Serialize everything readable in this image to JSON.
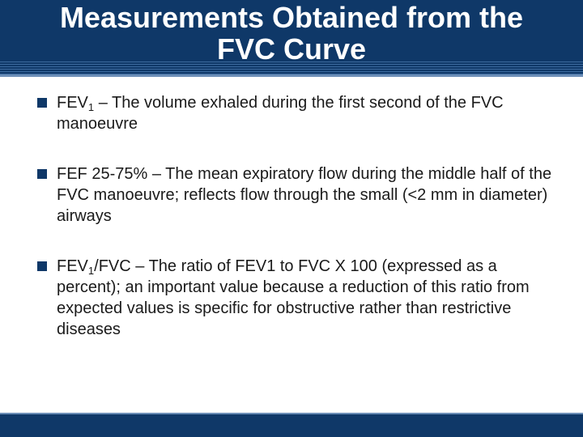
{
  "title": {
    "line1": "Measurements Obtained from the",
    "line2": "FVC Curve"
  },
  "bullets": [
    {
      "pre": "FEV",
      "sub": "1",
      "text": " – The volume exhaled during the first second of the FVC manoeuvre"
    },
    {
      "pre": "FEF 25-75% – The mean expiratory flow during the middle half of the FVC manoeuvre; reflects flow through the small (<2 mm in diameter) airways",
      "sub": "",
      "text": ""
    },
    {
      "pre": "FEV",
      "sub": "1",
      "text": "/FVC – The ratio of FEV1 to FVC X 100 (expressed as a percent); an important value because a reduction of this ratio from expected values is specific for obstructive rather than restrictive diseases"
    }
  ],
  "colors": {
    "title_bar": "#0f3868",
    "accent_rule": "#6d8fb8",
    "bullet_marker": "#0f3868"
  },
  "icons": {
    "bullet": "square-bullet-icon"
  }
}
